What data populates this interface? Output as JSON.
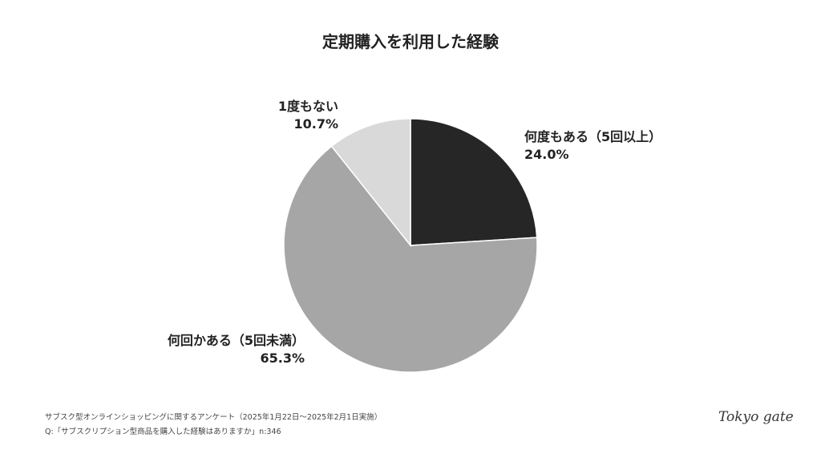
{
  "chart_data": {
    "type": "pie",
    "title": "定期購入を利用した経験",
    "slices": [
      {
        "label": "何度もある（5回以上）",
        "value": 24.0,
        "value_label": "24.0%",
        "color": "#262626"
      },
      {
        "label": "何回かある（5回未満）",
        "value": 65.3,
        "value_label": "65.3%",
        "color": "#a6a6a6"
      },
      {
        "label": "1度もない",
        "value": 10.7,
        "value_label": "10.7%",
        "color": "#d9d9d9"
      }
    ]
  },
  "footnotes": {
    "survey": "サブスク型オンラインショッピングに関するアンケート（2025年1月22日〜2025年2月1日実施）",
    "question": "Q:「サブスクリプション型商品を購入した経験はありますか」n:346"
  },
  "brand": {
    "logo": "Tokyo gate"
  }
}
